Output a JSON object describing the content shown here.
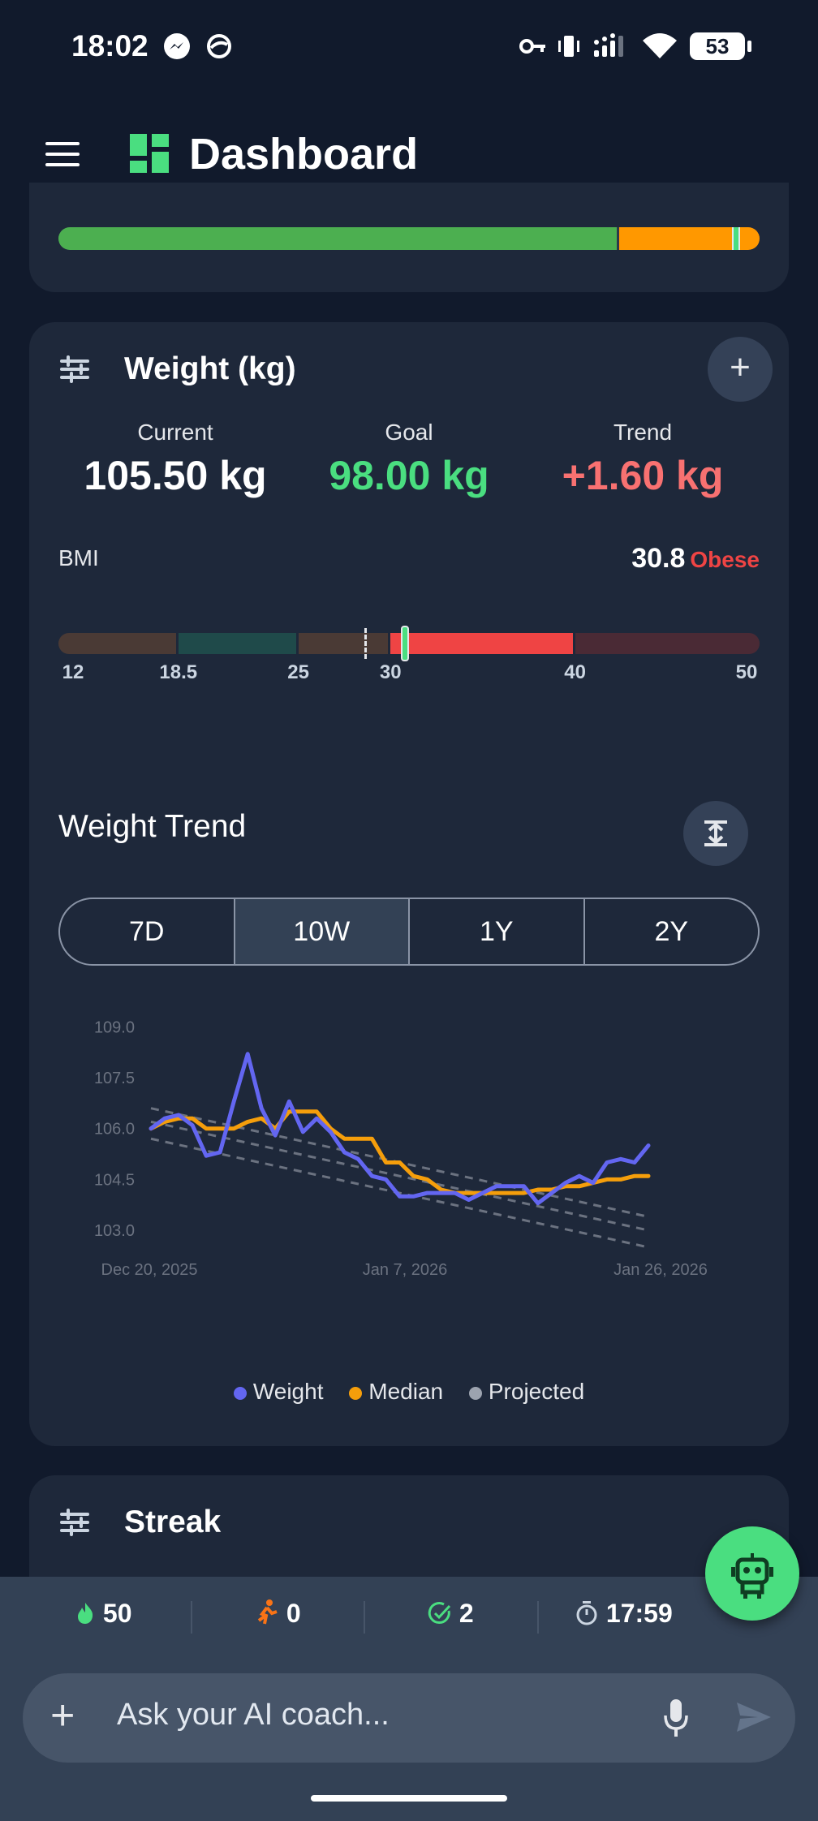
{
  "status_bar": {
    "time": "18:02",
    "battery": "53",
    "icons": [
      "messenger-icon",
      "vpn-icon",
      "key-icon",
      "vibrate-icon",
      "signal-icon",
      "wifi-icon"
    ]
  },
  "app_bar": {
    "title": "Dashboard",
    "menu_icon": "hamburger-icon",
    "logo_icon": "dashboard-grid-icon"
  },
  "top_card": {
    "progress_green_fraction": 0.8,
    "progress_orange_fraction": 0.2,
    "marker_fraction": 0.967
  },
  "weight_card": {
    "title": "Weight (kg)",
    "add_label": "+",
    "stats": [
      {
        "label": "Current",
        "value": "105.50 kg",
        "color": "#ffffff"
      },
      {
        "label": "Goal",
        "value": "98.00 kg",
        "color": "#4ade80"
      },
      {
        "label": "Trend",
        "value": "+1.60 kg",
        "color": "#f87171"
      }
    ],
    "bmi": {
      "label": "BMI",
      "value": "30.8",
      "category": "Obese",
      "scale_min": 12,
      "scale_max": 50,
      "current": 30.8,
      "goal": 28.6,
      "ticks": [
        "12",
        "18.5",
        "25",
        "30",
        "40",
        "50"
      ],
      "tick_values": [
        12,
        18.5,
        25,
        30,
        40,
        50
      ],
      "segments": [
        {
          "from": 12,
          "to": 18.5,
          "color": "#4a3a35"
        },
        {
          "from": 18.5,
          "to": 25,
          "color": "#1f4a4a"
        },
        {
          "from": 25,
          "to": 30,
          "color": "#4a3a35"
        },
        {
          "from": 30,
          "to": 40,
          "color": "#ef4444"
        },
        {
          "from": 40,
          "to": 50,
          "color": "#4a2a35"
        }
      ]
    },
    "trend": {
      "title": "Weight Trend",
      "expand_icon": "expand-vertical-icon",
      "ranges": [
        "7D",
        "10W",
        "1Y",
        "2Y"
      ],
      "active_range": "10W",
      "legend": [
        {
          "name": "Weight",
          "color": "#6366f1"
        },
        {
          "name": "Median",
          "color": "#f59e0b"
        },
        {
          "name": "Projected",
          "color": "#9ca3af"
        }
      ]
    }
  },
  "chart_data": {
    "type": "line",
    "title": "",
    "xlabel": "",
    "ylabel": "",
    "x_tick_labels": [
      "Dec 20, 2025",
      "Jan 7, 2026",
      "Jan 26, 2026"
    ],
    "y_tick_labels": [
      "109.0",
      "107.5",
      "106.0",
      "104.5",
      "103.0"
    ],
    "y_ticks": [
      109.0,
      107.5,
      106.0,
      104.5,
      103.0
    ],
    "ylim": [
      102.5,
      109.2
    ],
    "xlim": [
      0,
      37
    ],
    "grid": false,
    "legend_position": "bottom",
    "series": [
      {
        "name": "Weight",
        "color": "#6366f1",
        "x": [
          0,
          1,
          2,
          3,
          4,
          5,
          6,
          7,
          8,
          9,
          10,
          11,
          12,
          13,
          14,
          15,
          16,
          17,
          18,
          19,
          20,
          21,
          22,
          23,
          24,
          25,
          26,
          27,
          28,
          29,
          30,
          31,
          32,
          33,
          34,
          35,
          36
        ],
        "y": [
          106.0,
          106.3,
          106.4,
          106.1,
          105.2,
          105.3,
          106.8,
          108.2,
          106.6,
          105.8,
          106.8,
          105.9,
          106.3,
          105.9,
          105.3,
          105.1,
          104.6,
          104.5,
          104.0,
          104.0,
          104.1,
          104.1,
          104.1,
          103.9,
          104.1,
          104.3,
          104.3,
          104.3,
          103.8,
          104.1,
          104.4,
          104.6,
          104.4,
          105.0,
          105.1,
          105.0,
          105.5
        ]
      },
      {
        "name": "Median",
        "color": "#f59e0b",
        "x": [
          0,
          1,
          2,
          3,
          4,
          5,
          6,
          7,
          8,
          9,
          10,
          11,
          12,
          13,
          14,
          15,
          16,
          17,
          18,
          19,
          20,
          21,
          22,
          23,
          24,
          25,
          26,
          27,
          28,
          29,
          30,
          31,
          32,
          33,
          34,
          35,
          36
        ],
        "y": [
          106.0,
          106.2,
          106.3,
          106.3,
          106.0,
          106.0,
          106.0,
          106.2,
          106.3,
          106.0,
          106.5,
          106.5,
          106.5,
          106.0,
          105.7,
          105.7,
          105.7,
          105.0,
          105.0,
          104.6,
          104.5,
          104.2,
          104.1,
          104.1,
          104.1,
          104.1,
          104.1,
          104.1,
          104.2,
          104.2,
          104.3,
          104.3,
          104.4,
          104.5,
          104.5,
          104.6,
          104.6
        ]
      },
      {
        "name": "Projected",
        "color": "#6b7280",
        "style": "dashed",
        "lines": [
          {
            "x": [
              0,
              36
            ],
            "y": [
              106.6,
              103.4
            ]
          },
          {
            "x": [
              0,
              36
            ],
            "y": [
              106.2,
              103.0
            ]
          },
          {
            "x": [
              0,
              36
            ],
            "y": [
              105.7,
              102.5
            ]
          }
        ]
      }
    ]
  },
  "streak_card": {
    "title": "Streak"
  },
  "fab": {
    "icon": "robot-icon"
  },
  "stats_bar": [
    {
      "icon": "flame-icon",
      "value": "50",
      "color": "#4ade80"
    },
    {
      "icon": "running-icon",
      "value": "0",
      "color": "#f97316"
    },
    {
      "icon": "check-circle-icon",
      "value": "2",
      "color": "#4ade80"
    },
    {
      "icon": "timer-icon",
      "value": "17:59",
      "color": "#cbd5e1"
    }
  ],
  "chat": {
    "placeholder": "Ask your AI coach...",
    "plus_label": "+"
  }
}
